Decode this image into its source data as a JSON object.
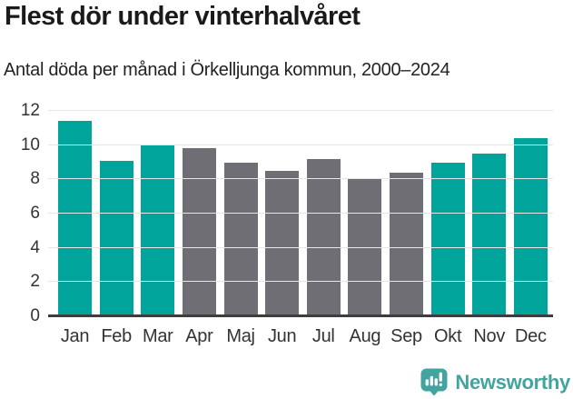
{
  "title": "Flest dör under vinterhalvåret",
  "subtitle": "Antal döda per månad i Örkelljunga kommun, 2000–2024",
  "footer": {
    "brand": "Newsworthy",
    "logo_icon": "speech-bubble-bar-chart-exclamation"
  },
  "colors": {
    "bar_highlight": "#00a49b",
    "bar_muted": "#6e6e74",
    "gridline": "#e6e6e6",
    "axis_line": "#3d3d3d",
    "tick_text": "#333333",
    "title_text": "#1a1a1a",
    "subtitle_text": "#222222",
    "logo": "#43a49f",
    "background": "#ffffff"
  },
  "chart_data": {
    "type": "bar",
    "title": "Flest dör under vinterhalvåret",
    "subtitle": "Antal döda per månad i Örkelljunga kommun, 2000–2024",
    "categories": [
      "Jan",
      "Feb",
      "Mar",
      "Apr",
      "Maj",
      "Jun",
      "Jul",
      "Aug",
      "Sep",
      "Okt",
      "Nov",
      "Dec"
    ],
    "values": [
      11.4,
      9.1,
      10.0,
      9.8,
      9.0,
      8.5,
      9.2,
      8.0,
      8.4,
      9.0,
      9.5,
      10.4
    ],
    "highlighted": [
      true,
      true,
      true,
      false,
      false,
      false,
      false,
      false,
      false,
      true,
      true,
      true
    ],
    "xlabel": "",
    "ylabel": "",
    "ylim": [
      0,
      12
    ],
    "yticks": [
      0,
      2,
      4,
      6,
      8,
      10,
      12
    ],
    "grid": true,
    "legend": false
  }
}
